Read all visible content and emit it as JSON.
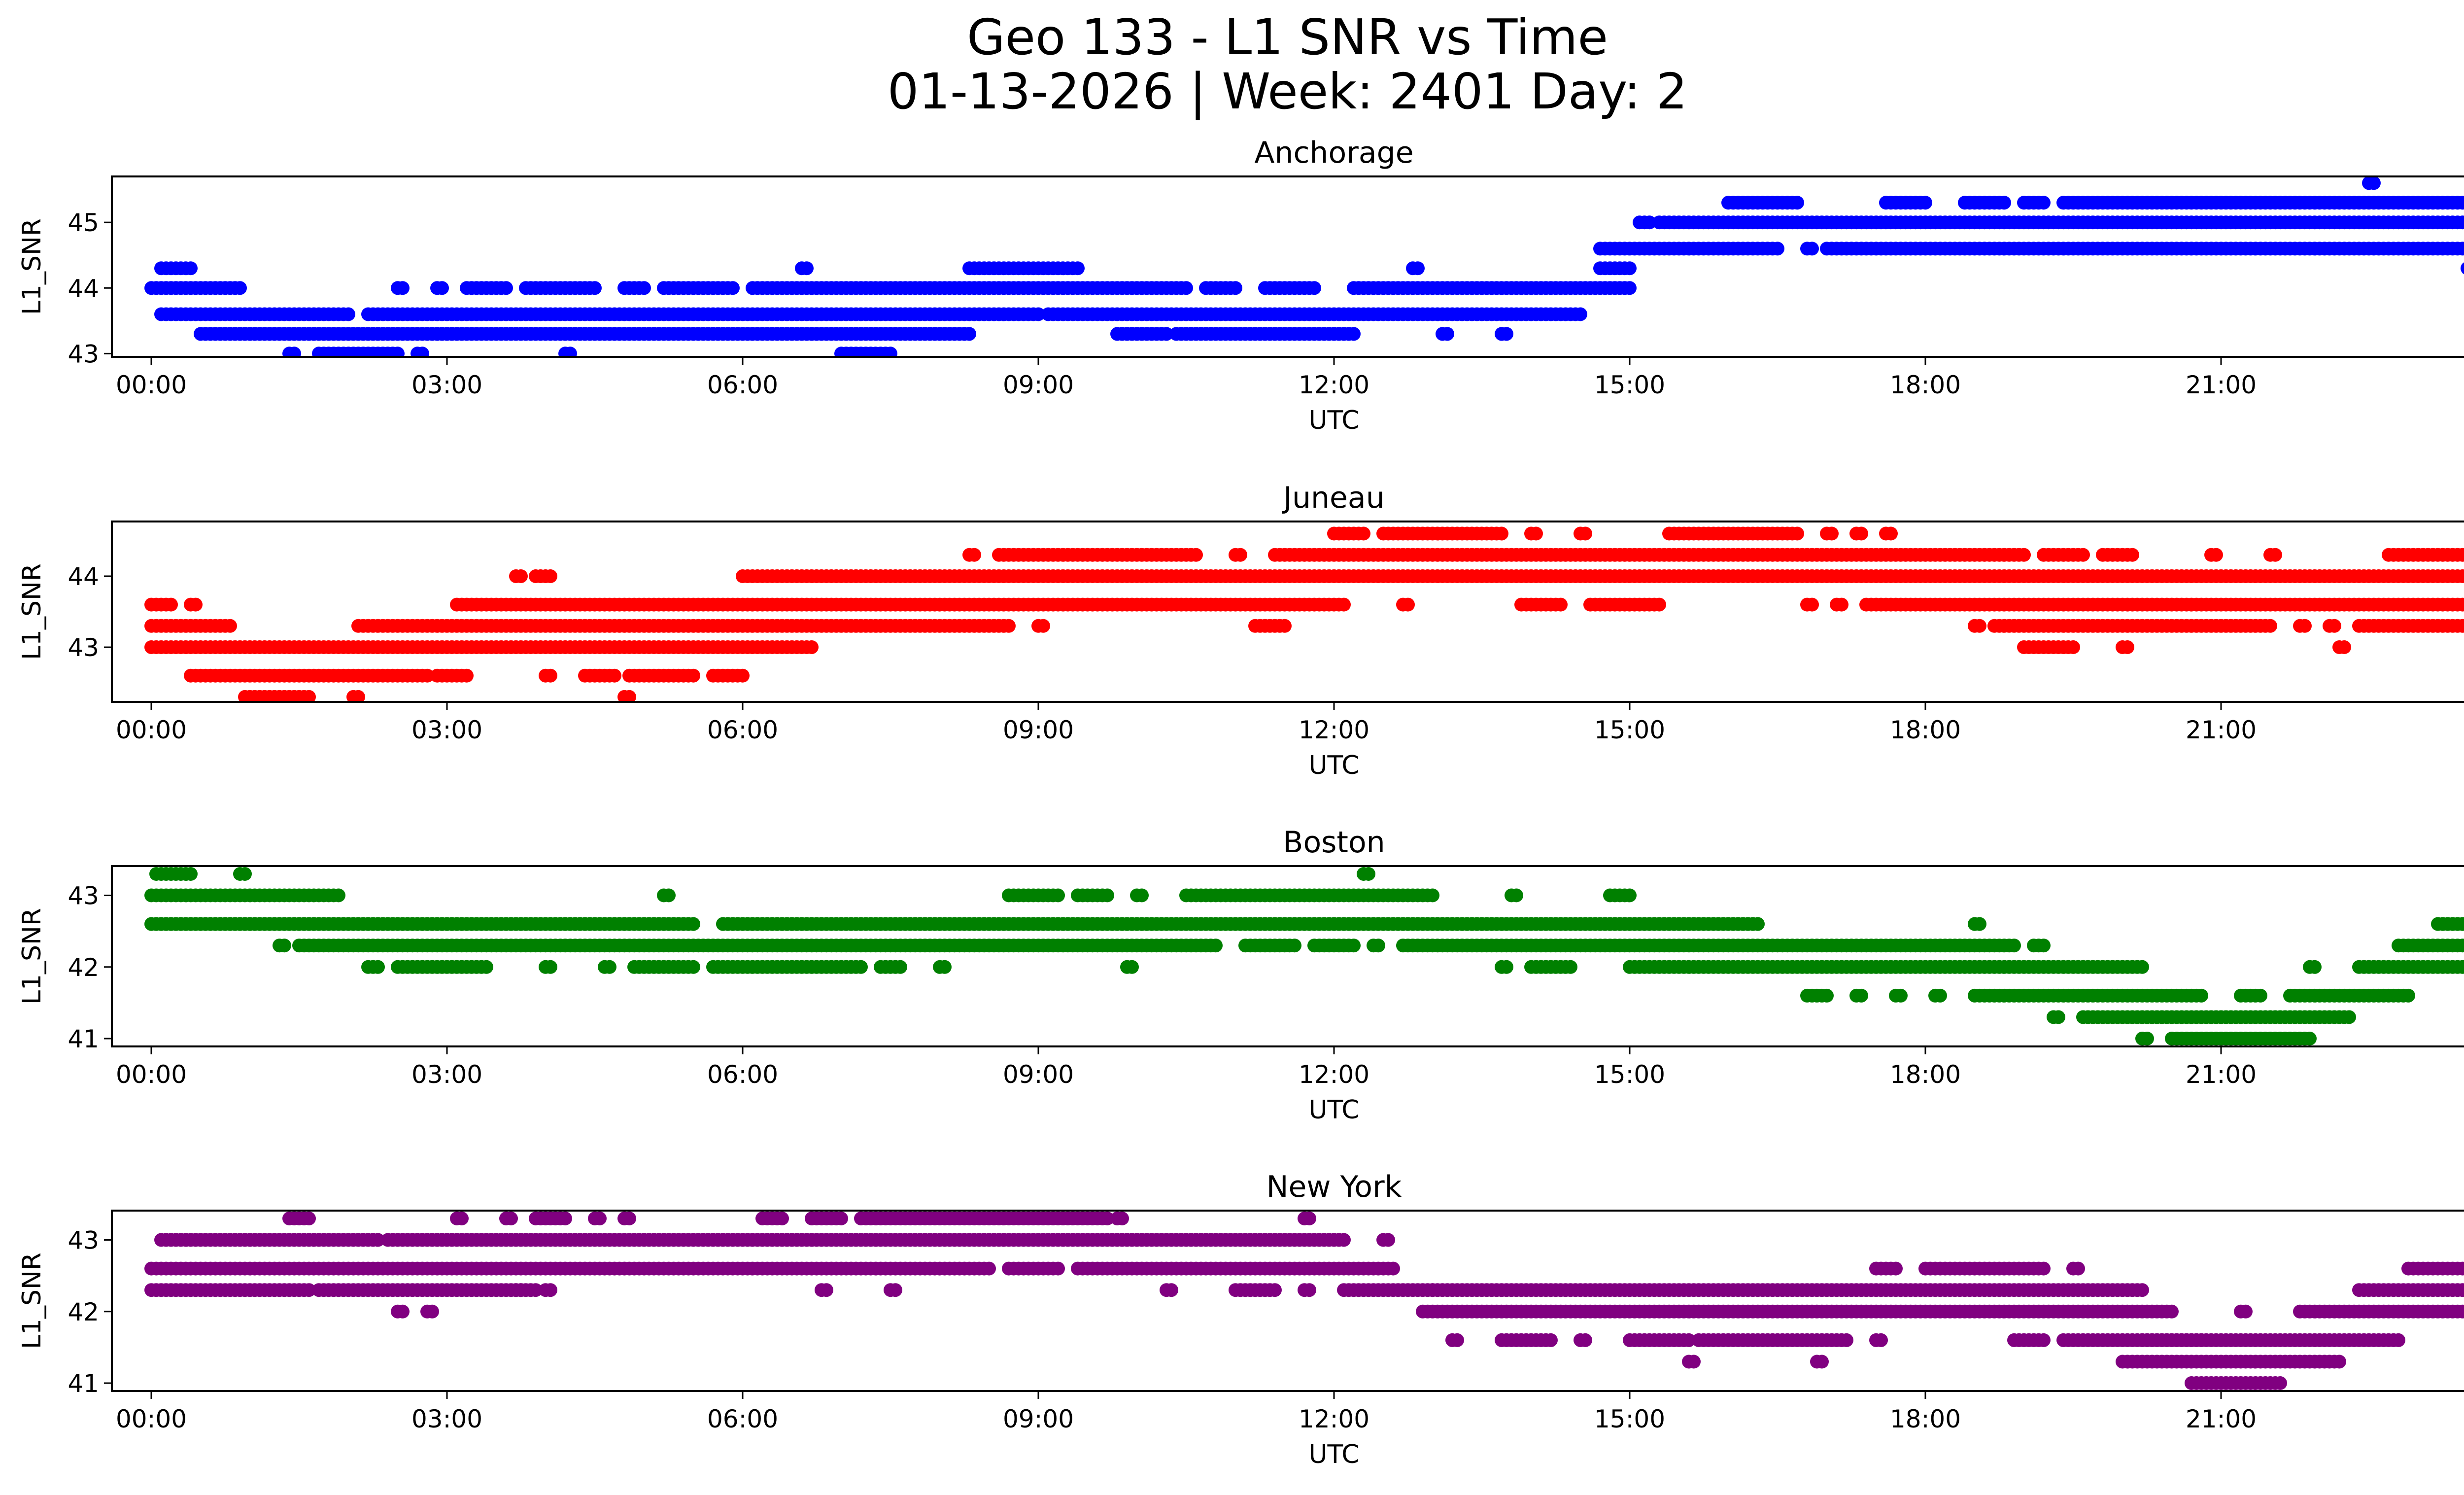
{
  "figure": {
    "title_line1": "Geo 133 - L1 SNR vs Time",
    "title_line2": "01-13-2026 | Week: 2401 Day: 2"
  },
  "chart_data": [
    {
      "type": "scatter",
      "title": "Anchorage",
      "xlabel": "UTC",
      "ylabel": "L1_SNR",
      "color": "#0000ff",
      "xlim": [
        -0.4,
        24.4
      ],
      "ylim": [
        42.95,
        45.7
      ],
      "xticks": [
        0,
        3,
        6,
        9,
        12,
        15,
        18,
        21,
        24
      ],
      "xtick_labels": [
        "00:00",
        "03:00",
        "06:00",
        "09:00",
        "12:00",
        "15:00",
        "18:00",
        "21:00",
        "00:00"
      ],
      "yticks": [
        43,
        44,
        45
      ],
      "ytick_labels": [
        "43",
        "44",
        "45"
      ],
      "levels": [
        {
          "y": 43.0,
          "ranges": [
            [
              1.4,
              1.45
            ],
            [
              1.7,
              2.5
            ],
            [
              2.7,
              2.75
            ],
            [
              4.2,
              4.25
            ],
            [
              7.0,
              7.5
            ]
          ]
        },
        {
          "y": 43.3,
          "ranges": [
            [
              0.5,
              8.3
            ],
            [
              9.8,
              10.3
            ],
            [
              10.4,
              12.2
            ],
            [
              13.1,
              13.15
            ],
            [
              13.7,
              13.75
            ]
          ]
        },
        {
          "y": 43.6,
          "ranges": [
            [
              0.1,
              2.0
            ],
            [
              2.2,
              9.0
            ],
            [
              9.1,
              14.5
            ]
          ]
        },
        {
          "y": 44.0,
          "ranges": [
            [
              0,
              0.9
            ],
            [
              2.5,
              2.55
            ],
            [
              2.9,
              2.95
            ],
            [
              3.2,
              3.6
            ],
            [
              3.8,
              4.5
            ],
            [
              4.8,
              5.0
            ],
            [
              5.2,
              5.9
            ],
            [
              6.1,
              10.5
            ],
            [
              10.7,
              11.0
            ],
            [
              11.3,
              11.8
            ],
            [
              12.2,
              15.0
            ]
          ]
        },
        {
          "y": 44.3,
          "ranges": [
            [
              0.1,
              0.4
            ],
            [
              6.6,
              6.65
            ],
            [
              8.3,
              9.4
            ],
            [
              12.8,
              12.85
            ],
            [
              14.7,
              15.0
            ]
          ]
        },
        {
          "y": 44.6,
          "ranges": [
            [
              14.7,
              16.5
            ],
            [
              16.8,
              16.85
            ],
            [
              17.0,
              24.0
            ]
          ]
        },
        {
          "y": 45.0,
          "ranges": [
            [
              15.1,
              15.2
            ],
            [
              15.3,
              24.0
            ]
          ]
        },
        {
          "y": 45.3,
          "ranges": [
            [
              16.0,
              16.7
            ],
            [
              17.6,
              18.0
            ],
            [
              18.4,
              18.8
            ],
            [
              19.0,
              19.2
            ],
            [
              19.4,
              23.8
            ]
          ]
        },
        {
          "y": 45.6,
          "ranges": [
            [
              22.5,
              22.55
            ]
          ]
        },
        {
          "y": 44.3,
          "ranges": [
            [
              23.5,
              24.0
            ]
          ]
        }
      ]
    },
    {
      "type": "scatter",
      "title": "Juneau",
      "xlabel": "UTC",
      "ylabel": "L1_SNR",
      "color": "#ff0000",
      "xlim": [
        -0.4,
        24.4
      ],
      "ylim": [
        42.23,
        44.77
      ],
      "xticks": [
        0,
        3,
        6,
        9,
        12,
        15,
        18,
        21,
        24
      ],
      "xtick_labels": [
        "00:00",
        "03:00",
        "06:00",
        "09:00",
        "12:00",
        "15:00",
        "18:00",
        "21:00",
        "00:00"
      ],
      "yticks": [
        43,
        44
      ],
      "ytick_labels": [
        "43",
        "44"
      ],
      "levels": [
        {
          "y": 42.3,
          "ranges": [
            [
              0.95,
              1.6
            ],
            [
              2.05,
              2.1
            ],
            [
              4.8,
              4.85
            ]
          ]
        },
        {
          "y": 42.6,
          "ranges": [
            [
              0.4,
              2.8
            ],
            [
              2.9,
              3.2
            ],
            [
              4.0,
              4.05
            ],
            [
              4.4,
              4.7
            ],
            [
              4.85,
              5.5
            ],
            [
              5.7,
              6.0
            ]
          ]
        },
        {
          "y": 43.0,
          "ranges": [
            [
              0,
              6.7
            ]
          ]
        },
        {
          "y": 43.3,
          "ranges": [
            [
              0,
              0.8
            ],
            [
              2.1,
              8.7
            ],
            [
              9.0,
              9.05
            ],
            [
              11.2,
              11.5
            ]
          ]
        },
        {
          "y": 43.6,
          "ranges": [
            [
              0,
              0.2
            ],
            [
              0.4,
              0.45
            ],
            [
              3.1,
              12.1
            ],
            [
              12.7,
              12.75
            ],
            [
              13.9,
              14.3
            ],
            [
              14.6,
              15.3
            ],
            [
              16.8,
              16.85
            ],
            [
              17.1,
              17.15
            ],
            [
              17.4,
              24.0
            ]
          ]
        },
        {
          "y": 44.0,
          "ranges": [
            [
              3.7,
              3.75
            ],
            [
              3.9,
              4.05
            ],
            [
              6.0,
              24.0
            ]
          ]
        },
        {
          "y": 44.3,
          "ranges": [
            [
              8.3,
              8.35
            ],
            [
              8.6,
              10.6
            ],
            [
              11.0,
              11.05
            ],
            [
              11.4,
              19.0
            ],
            [
              19.2,
              19.6
            ],
            [
              19.8,
              20.1
            ],
            [
              20.9,
              20.95
            ],
            [
              21.5,
              21.55
            ],
            [
              22.7,
              24.0
            ]
          ]
        },
        {
          "y": 44.6,
          "ranges": [
            [
              12.0,
              12.3
            ],
            [
              12.5,
              13.7
            ],
            [
              14.0,
              14.05
            ],
            [
              14.5,
              14.55
            ],
            [
              15.4,
              16.7
            ],
            [
              17.0,
              17.05
            ],
            [
              17.3,
              17.35
            ],
            [
              17.6,
              17.65
            ]
          ]
        },
        {
          "y": 43.3,
          "ranges": [
            [
              18.5,
              18.55
            ],
            [
              18.7,
              21.5
            ],
            [
              21.8,
              21.85
            ],
            [
              22.1,
              22.15
            ],
            [
              22.4,
              23.8
            ]
          ]
        },
        {
          "y": 43.0,
          "ranges": [
            [
              19.0,
              19.5
            ],
            [
              20.0,
              20.05
            ],
            [
              22.2,
              22.25
            ]
          ]
        }
      ]
    },
    {
      "type": "scatter",
      "title": "Boston",
      "xlabel": "UTC",
      "ylabel": "L1_SNR",
      "color": "#008000",
      "xlim": [
        -0.4,
        24.4
      ],
      "ylim": [
        40.89,
        43.41
      ],
      "xticks": [
        0,
        3,
        6,
        9,
        12,
        15,
        18,
        21,
        24
      ],
      "xtick_labels": [
        "00:00",
        "03:00",
        "06:00",
        "09:00",
        "12:00",
        "15:00",
        "18:00",
        "21:00",
        "00:00"
      ],
      "yticks": [
        41,
        42,
        43
      ],
      "ytick_labels": [
        "41",
        "42",
        "43"
      ],
      "levels": [
        {
          "y": 43.3,
          "ranges": [
            [
              0.05,
              0.4
            ],
            [
              0.9,
              0.95
            ],
            [
              12.3,
              12.35
            ]
          ]
        },
        {
          "y": 43.0,
          "ranges": [
            [
              0,
              1.9
            ],
            [
              5.2,
              5.25
            ],
            [
              8.7,
              9.2
            ],
            [
              9.4,
              9.7
            ],
            [
              10.0,
              10.05
            ],
            [
              10.5,
              13.0
            ],
            [
              13.8,
              13.85
            ],
            [
              14.8,
              15.0
            ]
          ]
        },
        {
          "y": 42.6,
          "ranges": [
            [
              0,
              5.5
            ],
            [
              5.8,
              16.3
            ],
            [
              18.5,
              18.55
            ],
            [
              23.2,
              24.0
            ]
          ]
        },
        {
          "y": 42.3,
          "ranges": [
            [
              1.3,
              1.35
            ],
            [
              1.5,
              10.8
            ],
            [
              11.1,
              11.6
            ],
            [
              11.8,
              12.2
            ],
            [
              12.4,
              12.45
            ],
            [
              12.7,
              18.9
            ],
            [
              19.1,
              19.2
            ],
            [
              22.8,
              24.0
            ]
          ]
        },
        {
          "y": 42.0,
          "ranges": [
            [
              2.2,
              2.3
            ],
            [
              2.5,
              3.4
            ],
            [
              4.0,
              4.05
            ],
            [
              4.6,
              4.65
            ],
            [
              4.9,
              5.5
            ],
            [
              5.7,
              7.2
            ],
            [
              7.4,
              7.6
            ],
            [
              8.0,
              8.05
            ],
            [
              9.9,
              9.95
            ],
            [
              13.7,
              13.75
            ],
            [
              14.0,
              14.4
            ],
            [
              15.0,
              20.2
            ],
            [
              22.4,
              24.0
            ]
          ]
        },
        {
          "y": 41.6,
          "ranges": [
            [
              16.8,
              17.0
            ],
            [
              17.3,
              17.35
            ],
            [
              17.7,
              17.75
            ],
            [
              18.1,
              18.15
            ],
            [
              18.5,
              20.8
            ],
            [
              21.2,
              21.4
            ],
            [
              21.7,
              22.9
            ]
          ]
        },
        {
          "y": 41.3,
          "ranges": [
            [
              19.3,
              19.35
            ],
            [
              19.6,
              22.3
            ]
          ]
        },
        {
          "y": 41.0,
          "ranges": [
            [
              20.2,
              20.25
            ],
            [
              20.5,
              21.9
            ]
          ]
        },
        {
          "y": 42.0,
          "ranges": [
            [
              21.9,
              21.95
            ]
          ]
        },
        {
          "y": 43.0,
          "ranges": [
            [
              23.8,
              23.85
            ]
          ]
        }
      ]
    },
    {
      "type": "scatter",
      "title": "New York",
      "xlabel": "UTC",
      "ylabel": "L1_SNR",
      "color": "#800080",
      "xlim": [
        -0.4,
        24.4
      ],
      "ylim": [
        40.89,
        43.41
      ],
      "xticks": [
        0,
        3,
        6,
        9,
        12,
        15,
        18,
        21,
        24
      ],
      "xtick_labels": [
        "00:00",
        "03:00",
        "06:00",
        "09:00",
        "12:00",
        "15:00",
        "18:00",
        "21:00",
        "00:00"
      ],
      "yticks": [
        41,
        42,
        43
      ],
      "ytick_labels": [
        "41",
        "42",
        "43"
      ],
      "levels": [
        {
          "y": 43.3,
          "ranges": [
            [
              1.4,
              1.6
            ],
            [
              3.1,
              3.15
            ],
            [
              3.6,
              3.65
            ],
            [
              3.9,
              4.2
            ],
            [
              4.5,
              4.55
            ],
            [
              4.8,
              4.85
            ],
            [
              6.2,
              6.4
            ],
            [
              6.7,
              7.0
            ],
            [
              7.2,
              9.7
            ],
            [
              9.8,
              9.85
            ],
            [
              11.7,
              11.75
            ]
          ]
        },
        {
          "y": 43.0,
          "ranges": [
            [
              0.1,
              2.3
            ],
            [
              2.4,
              12.1
            ],
            [
              12.5,
              12.55
            ]
          ]
        },
        {
          "y": 42.6,
          "ranges": [
            [
              0,
              8.5
            ],
            [
              8.7,
              9.2
            ],
            [
              9.4,
              12.6
            ],
            [
              17.5,
              17.7
            ],
            [
              18.0,
              19.2
            ],
            [
              19.5,
              19.55
            ],
            [
              22.9,
              24.0
            ]
          ]
        },
        {
          "y": 42.3,
          "ranges": [
            [
              0,
              1.6
            ],
            [
              1.7,
              3.9
            ],
            [
              3.7,
              3.75
            ],
            [
              4.0,
              4.05
            ],
            [
              6.8,
              6.85
            ],
            [
              7.5,
              7.55
            ],
            [
              10.3,
              10.35
            ],
            [
              11.0,
              11.4
            ],
            [
              11.7,
              11.75
            ],
            [
              12.1,
              13.0
            ],
            [
              13.0,
              20.2
            ],
            [
              22.4,
              24.0
            ]
          ]
        },
        {
          "y": 42.0,
          "ranges": [
            [
              2.5,
              2.55
            ],
            [
              2.8,
              2.85
            ],
            [
              12.9,
              20.5
            ],
            [
              21.2,
              21.25
            ],
            [
              21.8,
              24.0
            ]
          ]
        },
        {
          "y": 41.6,
          "ranges": [
            [
              13.2,
              13.25
            ],
            [
              13.7,
              14.2
            ],
            [
              14.5,
              14.55
            ],
            [
              15.0,
              15.6
            ],
            [
              15.7,
              17.2
            ],
            [
              17.5,
              17.55
            ],
            [
              18.9,
              19.2
            ],
            [
              19.4,
              20.8
            ],
            [
              20.2,
              22.8
            ]
          ]
        },
        {
          "y": 41.3,
          "ranges": [
            [
              15.6,
              15.65
            ],
            [
              16.9,
              16.95
            ],
            [
              20.0,
              22.2
            ]
          ]
        },
        {
          "y": 41.0,
          "ranges": [
            [
              20.7,
              21.6
            ]
          ]
        }
      ]
    }
  ]
}
